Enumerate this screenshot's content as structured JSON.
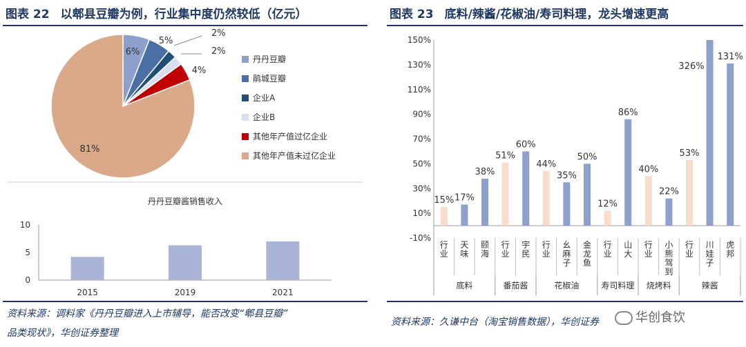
{
  "left": {
    "title_no": "图表 22",
    "title_text": "以郫县豆瓣为例，行业集中度仍然较低（亿元）",
    "source_line1": "资料来源：调料家《丹丹豆瓣进入上市辅导，能否改变“郫县豆瓣”",
    "source_line2": "品类现状》，华创证券整理"
  },
  "right": {
    "title_no": "图表 23",
    "title_text": "底料/辣酱/花椒油/寿司料理，龙头增速更高",
    "source": "资料来源：久谦中台（淘宝销售数据），华创证券"
  },
  "watermark": "华创食饮",
  "chart_data": [
    {
      "type": "pie",
      "labels": [
        "丹丹豆瓣",
        "鹃城豆瓣",
        "企业A",
        "企业B",
        "其他年产值过亿企业",
        "其他年产值未过亿企业"
      ],
      "values": [
        6,
        5,
        2,
        2,
        4,
        81
      ],
      "value_labels": [
        "6%",
        "5%",
        "2%",
        "2%",
        "4%",
        "81%"
      ],
      "colors": [
        "#8da0cb",
        "#4a6fa5",
        "#1f4e79",
        "#d9dff0",
        "#c00000",
        "#d9a98a"
      ],
      "legend": "right"
    },
    {
      "type": "bar",
      "title": "丹丹豆瓣酱销售收入",
      "categories": [
        "2015",
        "2019",
        "2021"
      ],
      "values": [
        4.2,
        6.3,
        7.0
      ],
      "ylim": [
        0,
        10
      ],
      "yticks": [
        0,
        5,
        10
      ],
      "color": "#a9b4d6"
    },
    {
      "type": "bar",
      "categories": [
        "行业",
        "天味",
        "颐海",
        "行业",
        "宇民",
        "行业",
        "幺麻子",
        "金龙鱼",
        "行业",
        "山大",
        "行业",
        "小熊驾到",
        "行业",
        "川娃子",
        "虎邦"
      ],
      "groups": [
        {
          "name": "底料",
          "size": 3
        },
        {
          "name": "番茄酱",
          "size": 2
        },
        {
          "name": "花椒油",
          "size": 3
        },
        {
          "name": "寿司料理",
          "size": 2
        },
        {
          "name": "烧烤料",
          "size": 2
        },
        {
          "name": "辣酱",
          "size": 3
        }
      ],
      "values": [
        15,
        17,
        38,
        51,
        60,
        44,
        35,
        50,
        12,
        86,
        40,
        22,
        53,
        326,
        131
      ],
      "value_labels": [
        "15%",
        "17%",
        "38%",
        "51%",
        "60%",
        "44%",
        "35%",
        "50%",
        "12%",
        "86%",
        "40%",
        "22%",
        "53%",
        "326%",
        "131%"
      ],
      "is_industry": [
        true,
        false,
        false,
        true,
        false,
        true,
        false,
        false,
        true,
        false,
        true,
        false,
        true,
        false,
        false
      ],
      "colors": {
        "industry": "#f8dccc",
        "company": "#8fa0cc"
      },
      "ylim": [
        -10,
        150
      ],
      "yticks": [
        "-10%",
        "10%",
        "30%",
        "50%",
        "70%",
        "90%",
        "110%",
        "130%",
        "150%"
      ],
      "ytick_values": [
        -10,
        10,
        30,
        50,
        70,
        90,
        110,
        130,
        150
      ]
    }
  ]
}
